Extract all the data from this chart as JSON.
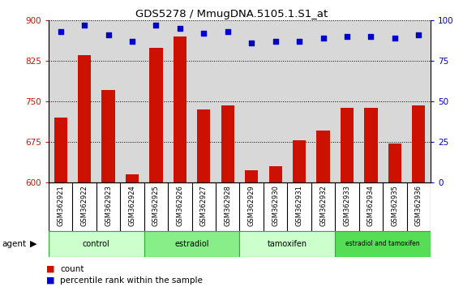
{
  "title": "GDS5278 / MmugDNA.5105.1.S1_at",
  "samples": [
    "GSM362921",
    "GSM362922",
    "GSM362923",
    "GSM362924",
    "GSM362925",
    "GSM362926",
    "GSM362927",
    "GSM362928",
    "GSM362929",
    "GSM362930",
    "GSM362931",
    "GSM362932",
    "GSM362933",
    "GSM362934",
    "GSM362935",
    "GSM362936"
  ],
  "counts": [
    720,
    835,
    770,
    615,
    848,
    870,
    735,
    742,
    622,
    630,
    678,
    695,
    737,
    738,
    672,
    742
  ],
  "percentile_ranks": [
    93,
    97,
    91,
    87,
    97,
    95,
    92,
    93,
    86,
    87,
    87,
    89,
    90,
    90,
    89,
    91
  ],
  "groups": [
    {
      "label": "control",
      "start": 0,
      "end": 3,
      "color": "#ccffcc"
    },
    {
      "label": "estradiol",
      "start": 4,
      "end": 7,
      "color": "#88ee88"
    },
    {
      "label": "tamoxifen",
      "start": 8,
      "end": 11,
      "color": "#ccffcc"
    },
    {
      "label": "estradiol and tamoxifen",
      "start": 12,
      "end": 15,
      "color": "#55dd55"
    }
  ],
  "ylim_left": [
    600,
    900
  ],
  "ylim_right": [
    0,
    100
  ],
  "yticks_left": [
    600,
    675,
    750,
    825,
    900
  ],
  "yticks_right": [
    0,
    25,
    50,
    75,
    100
  ],
  "bar_color": "#cc1100",
  "dot_color": "#0000cc",
  "plot_bg": "#d8d8d8",
  "left_tick_color": "#cc1100",
  "right_tick_color": "#0000cc"
}
